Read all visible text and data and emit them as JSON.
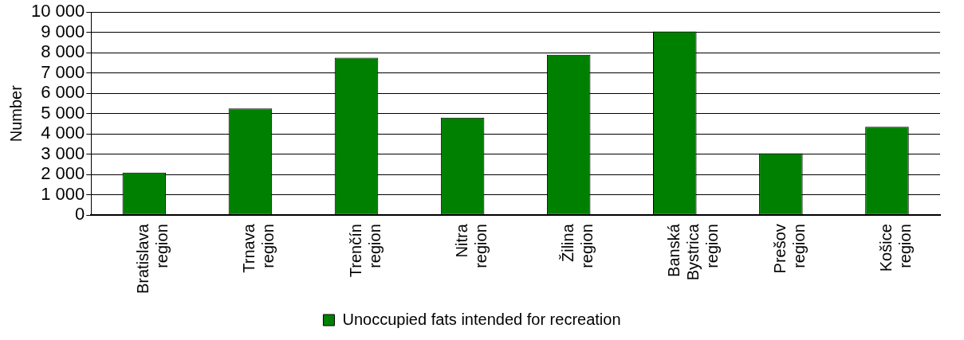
{
  "chart_data": {
    "type": "bar",
    "ylabel": "Number",
    "categories": [
      "Bratislava region",
      "Trnava region",
      "Trenčín region",
      "Nitra region",
      "Žilina region",
      "Banská Bystrica region",
      "Prešov region",
      "Košice region"
    ],
    "series": [
      {
        "name": "Unoccupied fats intended for recreation",
        "color": "#008000",
        "values": [
          2100,
          5250,
          7750,
          4800,
          7900,
          9050,
          3050,
          4350
        ]
      }
    ],
    "ylim": [
      0,
      10000
    ],
    "yticks": [
      {
        "value": 0,
        "label": "0"
      },
      {
        "value": 1000,
        "label": "1 000"
      },
      {
        "value": 2000,
        "label": "2 000"
      },
      {
        "value": 3000,
        "label": "3 000"
      },
      {
        "value": 4000,
        "label": "4 000"
      },
      {
        "value": 5000,
        "label": "5 000"
      },
      {
        "value": 6000,
        "label": "6 000"
      },
      {
        "value": 7000,
        "label": "7 000"
      },
      {
        "value": 8000,
        "label": "8 000"
      },
      {
        "value": 9000,
        "label": "9 000"
      },
      {
        "value": 10000,
        "label": "10 000"
      }
    ],
    "grid": "y",
    "legend": "bottom"
  }
}
